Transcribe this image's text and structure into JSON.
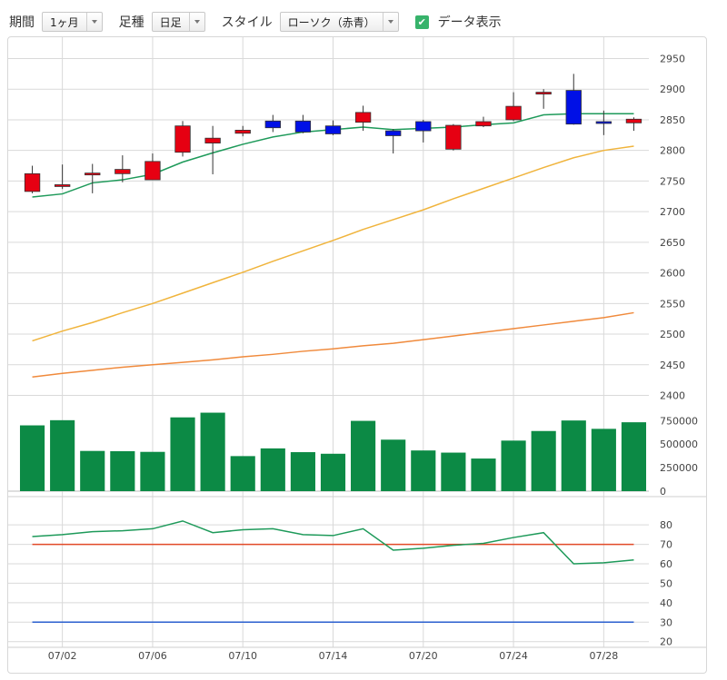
{
  "toolbar": {
    "period_label": "期間",
    "period_value": "1ヶ月",
    "candle_label": "足種",
    "candle_value": "日足",
    "style_label": "スタイル",
    "style_value": "ローソク（赤青）",
    "show_data_label": "データ表示",
    "show_data_checked": true
  },
  "colors": {
    "up": "#e60012",
    "down": "#0010e6",
    "ma_short": "#1e9a5a",
    "ma_mid": "#f0b43c",
    "ma_long": "#f08a3c",
    "volume": "#0c8a45",
    "rsi": "#1e9a5a",
    "rsi_upper": "#e24a28",
    "rsi_lower": "#2a5fcf",
    "grid": "#d9d9d9"
  },
  "chart_data": {
    "type": "candlestick",
    "x_tick_labels": [
      "07/02",
      "07/06",
      "07/10",
      "07/14",
      "07/20",
      "07/24",
      "07/28"
    ],
    "price_axis": {
      "ticks": [
        2400,
        2450,
        2500,
        2550,
        2600,
        2650,
        2700,
        2750,
        2800,
        2850,
        2900,
        2950
      ],
      "range": [
        2380,
        2970
      ]
    },
    "volume_axis": {
      "ticks": [
        0,
        250000,
        500000,
        750000
      ],
      "labels": [
        "0",
        "250000",
        "500000",
        "750000"
      ],
      "range": [
        0,
        850000
      ]
    },
    "rsi_axis": {
      "ticks": [
        20,
        30,
        40,
        50,
        60,
        70,
        80
      ],
      "range": [
        18,
        88
      ]
    },
    "candles": [
      {
        "x": "07/01",
        "open": 2733,
        "high": 2775,
        "low": 2730,
        "close": 2762
      },
      {
        "x": "07/02",
        "open": 2743,
        "high": 2777,
        "low": 2737,
        "close": 2744
      },
      {
        "x": "07/03",
        "open": 2760,
        "high": 2778,
        "low": 2730,
        "close": 2763
      },
      {
        "x": "07/06",
        "open": 2762,
        "high": 2792,
        "low": 2748,
        "close": 2769
      },
      {
        "x": "07/07",
        "open": 2752,
        "high": 2795,
        "low": 2752,
        "close": 2782
      },
      {
        "x": "07/08",
        "open": 2797,
        "high": 2848,
        "low": 2790,
        "close": 2840
      },
      {
        "x": "07/09",
        "open": 2812,
        "high": 2840,
        "low": 2761,
        "close": 2820
      },
      {
        "x": "07/10",
        "open": 2828,
        "high": 2840,
        "low": 2823,
        "close": 2833
      },
      {
        "x": "07/13",
        "open": 2848,
        "high": 2858,
        "low": 2830,
        "close": 2837
      },
      {
        "x": "07/14",
        "open": 2848,
        "high": 2858,
        "low": 2828,
        "close": 2830
      },
      {
        "x": "07/15",
        "open": 2840,
        "high": 2849,
        "low": 2825,
        "close": 2827
      },
      {
        "x": "07/16",
        "open": 2846,
        "high": 2873,
        "low": 2832,
        "close": 2862
      },
      {
        "x": "07/17",
        "open": 2832,
        "high": 2835,
        "low": 2795,
        "close": 2824
      },
      {
        "x": "07/20",
        "open": 2847,
        "high": 2850,
        "low": 2813,
        "close": 2832
      },
      {
        "x": "07/21",
        "open": 2802,
        "high": 2843,
        "low": 2800,
        "close": 2841
      },
      {
        "x": "07/22",
        "open": 2840,
        "high": 2855,
        "low": 2838,
        "close": 2847
      },
      {
        "x": "07/24",
        "open": 2850,
        "high": 2895,
        "low": 2848,
        "close": 2872
      },
      {
        "x": "07/27",
        "open": 2893,
        "high": 2900,
        "low": 2868,
        "close": 2895
      },
      {
        "x": "07/28",
        "open": 2898,
        "high": 2925,
        "low": 2842,
        "close": 2843
      },
      {
        "x": "07/29",
        "open": 2847,
        "high": 2865,
        "low": 2825,
        "close": 2845
      },
      {
        "x": "07/30",
        "open": 2845,
        "high": 2854,
        "low": 2832,
        "close": 2851
      }
    ],
    "ma_short": [
      2724,
      2729,
      2747,
      2752,
      2761,
      2781,
      2796,
      2810,
      2822,
      2830,
      2834,
      2838,
      2834,
      2836,
      2838,
      2842,
      2845,
      2858,
      2860,
      2860,
      2860
    ],
    "ma_mid": [
      2489,
      2505,
      2519,
      2535,
      2550,
      2567,
      2584,
      2601,
      2619,
      2636,
      2653,
      2671,
      2687,
      2703,
      2721,
      2738,
      2755,
      2772,
      2788,
      2800,
      2807
    ],
    "ma_long": [
      2430,
      2436,
      2441,
      2446,
      2450,
      2454,
      2458,
      2463,
      2467,
      2472,
      2476,
      2481,
      2485,
      2491,
      2497,
      2503,
      2509,
      2515,
      2521,
      2527,
      2535
    ],
    "volume": [
      700000,
      755000,
      428000,
      425000,
      418000,
      785000,
      835000,
      373000,
      455000,
      415000,
      398000,
      748000,
      548000,
      433000,
      410000,
      347000,
      538000,
      640000,
      752000,
      663000,
      733000
    ],
    "rsi": [
      74,
      75,
      76.5,
      77,
      78,
      82,
      76,
      77.5,
      78,
      75,
      74.5,
      78,
      67,
      68,
      69.5,
      70.5,
      73.5,
      76,
      60,
      60.5,
      62
    ],
    "rsi_upper": 70,
    "rsi_lower": 30
  }
}
